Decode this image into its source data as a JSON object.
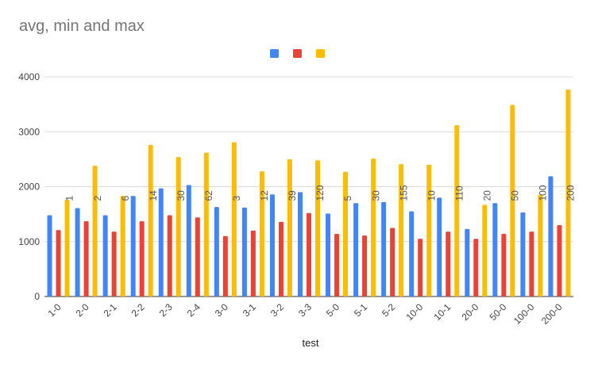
{
  "chart_data": {
    "type": "bar",
    "title": "avg, min and max",
    "xlabel": "test",
    "ylabel": "",
    "ylim": [
      0,
      4000
    ],
    "yticks": [
      0,
      1000,
      2000,
      3000,
      4000
    ],
    "grid": "horizontal",
    "legend_position": "top",
    "categories": [
      "1-0",
      "2-0",
      "2-1",
      "2-2",
      "2-3",
      "2-4",
      "3-0",
      "3-1",
      "3-2",
      "3-3",
      "5-0",
      "5-1",
      "5-2",
      "10-0",
      "10-1",
      "20-0",
      "50-0",
      "100-0",
      "200-0"
    ],
    "series": [
      {
        "color": "#4285F4",
        "values": [
          1480,
          1610,
          1480,
          1830,
          1970,
          2030,
          1630,
          1620,
          1860,
          1900,
          1510,
          1700,
          1720,
          1550,
          1800,
          1230,
          1700,
          1530,
          2190
        ]
      },
      {
        "color": "#EA4335",
        "values": [
          1210,
          1370,
          1180,
          1370,
          1480,
          1440,
          1100,
          1200,
          1360,
          1520,
          1140,
          1110,
          1250,
          1050,
          1180,
          1050,
          1140,
          1180,
          1300
        ]
      },
      {
        "color": "#FBBC04",
        "values": [
          1760,
          2380,
          1830,
          2760,
          2540,
          2620,
          2810,
          2280,
          2500,
          2480,
          2270,
          2510,
          2410,
          2400,
          3120,
          1670,
          3490,
          1850,
          3770
        ]
      }
    ],
    "data_labels": [
      "1",
      "2",
      "6",
      "14",
      "30",
      "62",
      "3",
      "12",
      "39",
      "120",
      "5",
      "30",
      "155",
      "10",
      "110",
      "20",
      "50",
      "100",
      "200"
    ]
  }
}
